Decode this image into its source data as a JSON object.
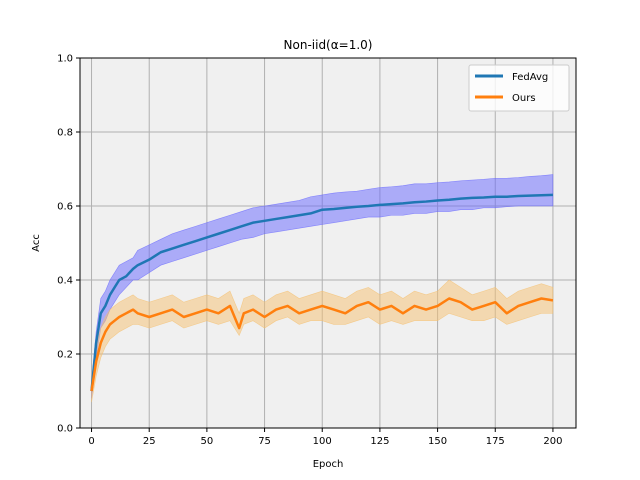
{
  "chart_data": {
    "type": "line",
    "title": "Non-iid(α=1.0)",
    "xlabel": "Epoch",
    "ylabel": "Acc",
    "xlim": [
      -5,
      210
    ],
    "ylim": [
      0.0,
      1.0
    ],
    "xticks": [
      0,
      25,
      50,
      75,
      100,
      125,
      150,
      175,
      200
    ],
    "yticks": [
      0.0,
      0.2,
      0.4,
      0.6,
      0.8,
      1.0
    ],
    "xtick_labels": [
      "0",
      "25",
      "50",
      "75",
      "100",
      "125",
      "150",
      "175",
      "200"
    ],
    "ytick_labels": [
      "0.0",
      "0.2",
      "0.4",
      "0.6",
      "0.8",
      "1.0"
    ],
    "grid": true,
    "legend_position": "top-right",
    "background": "#f0f0f0",
    "series": [
      {
        "name": "FedAvg",
        "color": "#1f77b4",
        "band_color": "#6666ff",
        "x": [
          0,
          2,
          4,
          6,
          8,
          10,
          12,
          15,
          18,
          20,
          25,
          30,
          35,
          40,
          45,
          50,
          55,
          60,
          65,
          70,
          75,
          80,
          85,
          90,
          95,
          100,
          105,
          110,
          115,
          120,
          125,
          130,
          135,
          140,
          145,
          150,
          155,
          160,
          165,
          170,
          175,
          180,
          185,
          190,
          195,
          200
        ],
        "mean": [
          0.1,
          0.23,
          0.31,
          0.33,
          0.36,
          0.38,
          0.4,
          0.41,
          0.43,
          0.44,
          0.455,
          0.475,
          0.485,
          0.495,
          0.505,
          0.515,
          0.525,
          0.535,
          0.545,
          0.555,
          0.56,
          0.565,
          0.57,
          0.575,
          0.58,
          0.59,
          0.592,
          0.595,
          0.598,
          0.6,
          0.603,
          0.605,
          0.607,
          0.61,
          0.612,
          0.615,
          0.617,
          0.62,
          0.622,
          0.623,
          0.625,
          0.625,
          0.627,
          0.628,
          0.629,
          0.63
        ],
        "lower": [
          0.08,
          0.19,
          0.27,
          0.29,
          0.32,
          0.34,
          0.36,
          0.38,
          0.4,
          0.4,
          0.42,
          0.44,
          0.45,
          0.46,
          0.47,
          0.48,
          0.49,
          0.5,
          0.51,
          0.515,
          0.525,
          0.53,
          0.535,
          0.54,
          0.545,
          0.55,
          0.555,
          0.56,
          0.565,
          0.57,
          0.57,
          0.575,
          0.575,
          0.58,
          0.58,
          0.585,
          0.585,
          0.59,
          0.59,
          0.595,
          0.595,
          0.598,
          0.6,
          0.6,
          0.6,
          0.6
        ],
        "upper": [
          0.12,
          0.26,
          0.35,
          0.37,
          0.4,
          0.42,
          0.44,
          0.45,
          0.46,
          0.48,
          0.495,
          0.51,
          0.525,
          0.535,
          0.545,
          0.555,
          0.565,
          0.575,
          0.585,
          0.595,
          0.6,
          0.605,
          0.61,
          0.615,
          0.625,
          0.63,
          0.635,
          0.638,
          0.64,
          0.645,
          0.65,
          0.652,
          0.655,
          0.66,
          0.66,
          0.663,
          0.665,
          0.668,
          0.67,
          0.672,
          0.675,
          0.675,
          0.677,
          0.68,
          0.682,
          0.685
        ]
      },
      {
        "name": "Ours",
        "color": "#ff7f0e",
        "band_color": "#f5c070",
        "x": [
          0,
          2,
          4,
          6,
          8,
          10,
          12,
          15,
          18,
          20,
          25,
          30,
          35,
          40,
          45,
          50,
          55,
          60,
          62,
          64,
          66,
          70,
          75,
          80,
          85,
          90,
          95,
          100,
          105,
          110,
          115,
          120,
          125,
          130,
          135,
          140,
          145,
          150,
          155,
          160,
          165,
          170,
          175,
          180,
          185,
          190,
          195,
          200
        ],
        "mean": [
          0.1,
          0.18,
          0.23,
          0.26,
          0.28,
          0.29,
          0.3,
          0.31,
          0.32,
          0.31,
          0.3,
          0.31,
          0.32,
          0.3,
          0.31,
          0.32,
          0.31,
          0.33,
          0.3,
          0.27,
          0.31,
          0.32,
          0.3,
          0.32,
          0.33,
          0.31,
          0.32,
          0.33,
          0.32,
          0.31,
          0.33,
          0.34,
          0.32,
          0.33,
          0.31,
          0.33,
          0.32,
          0.33,
          0.35,
          0.34,
          0.32,
          0.33,
          0.34,
          0.31,
          0.33,
          0.34,
          0.35,
          0.345
        ],
        "lower": [
          0.07,
          0.14,
          0.19,
          0.22,
          0.24,
          0.25,
          0.26,
          0.27,
          0.28,
          0.28,
          0.27,
          0.28,
          0.29,
          0.27,
          0.28,
          0.29,
          0.28,
          0.29,
          0.27,
          0.25,
          0.28,
          0.29,
          0.27,
          0.29,
          0.3,
          0.28,
          0.29,
          0.29,
          0.28,
          0.28,
          0.29,
          0.3,
          0.28,
          0.29,
          0.28,
          0.29,
          0.29,
          0.29,
          0.31,
          0.3,
          0.29,
          0.29,
          0.3,
          0.28,
          0.29,
          0.3,
          0.31,
          0.31
        ],
        "upper": [
          0.13,
          0.22,
          0.27,
          0.3,
          0.32,
          0.33,
          0.34,
          0.35,
          0.36,
          0.35,
          0.34,
          0.35,
          0.36,
          0.34,
          0.35,
          0.36,
          0.35,
          0.37,
          0.34,
          0.31,
          0.35,
          0.36,
          0.34,
          0.36,
          0.37,
          0.35,
          0.36,
          0.37,
          0.36,
          0.35,
          0.37,
          0.38,
          0.36,
          0.37,
          0.35,
          0.37,
          0.36,
          0.37,
          0.4,
          0.38,
          0.36,
          0.37,
          0.38,
          0.35,
          0.37,
          0.38,
          0.39,
          0.38
        ]
      }
    ]
  }
}
